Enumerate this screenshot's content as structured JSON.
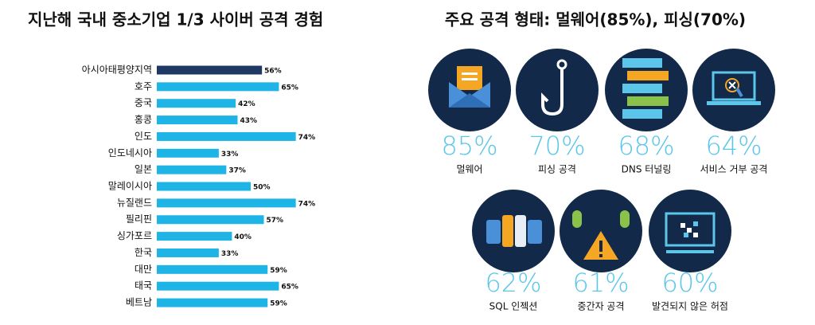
{
  "chart_data": {
    "type": "bar",
    "orientation": "horizontal",
    "title": "지난해 국내 중소기업 1/3 사이버 공격 경험",
    "categories": [
      "아시아태평양지역",
      "호주",
      "중국",
      "홍콩",
      "인도",
      "인도네시아",
      "일본",
      "말레이시아",
      "뉴질랜드",
      "필리핀",
      "싱가포르",
      "한국",
      "대만",
      "태국",
      "베트남"
    ],
    "values": [
      56,
      65,
      42,
      43,
      74,
      33,
      37,
      50,
      74,
      57,
      40,
      33,
      59,
      65,
      59
    ],
    "value_labels": [
      "56%",
      "65%",
      "42%",
      "43%",
      "74%",
      "33%",
      "37%",
      "50%",
      "74%",
      "57%",
      "40%",
      "33%",
      "59%",
      "65%",
      "59%"
    ],
    "colors": [
      "#1f3864",
      "#1fb4e6",
      "#1fb4e6",
      "#1fb4e6",
      "#1fb4e6",
      "#1fb4e6",
      "#1fb4e6",
      "#1fb4e6",
      "#1fb4e6",
      "#1fb4e6",
      "#1fb4e6",
      "#1fb4e6",
      "#1fb4e6",
      "#1fb4e6",
      "#1fb4e6"
    ]
  },
  "stats": {
    "title": "주요 공격 형태: 멀웨어(85%), 피싱(70%)",
    "items": [
      {
        "percent": "85%",
        "label": "멀웨어"
      },
      {
        "percent": "70%",
        "label": "피싱 공격"
      },
      {
        "percent": "68%",
        "label": "DNS 터널링"
      },
      {
        "percent": "64%",
        "label": "서비스 거부 공격"
      },
      {
        "percent": "62%",
        "label": "SQL 인젝션"
      },
      {
        "percent": "61%",
        "label": "중간자 공격"
      },
      {
        "percent": "60%",
        "label": "발견되지 않은 허점"
      }
    ]
  }
}
